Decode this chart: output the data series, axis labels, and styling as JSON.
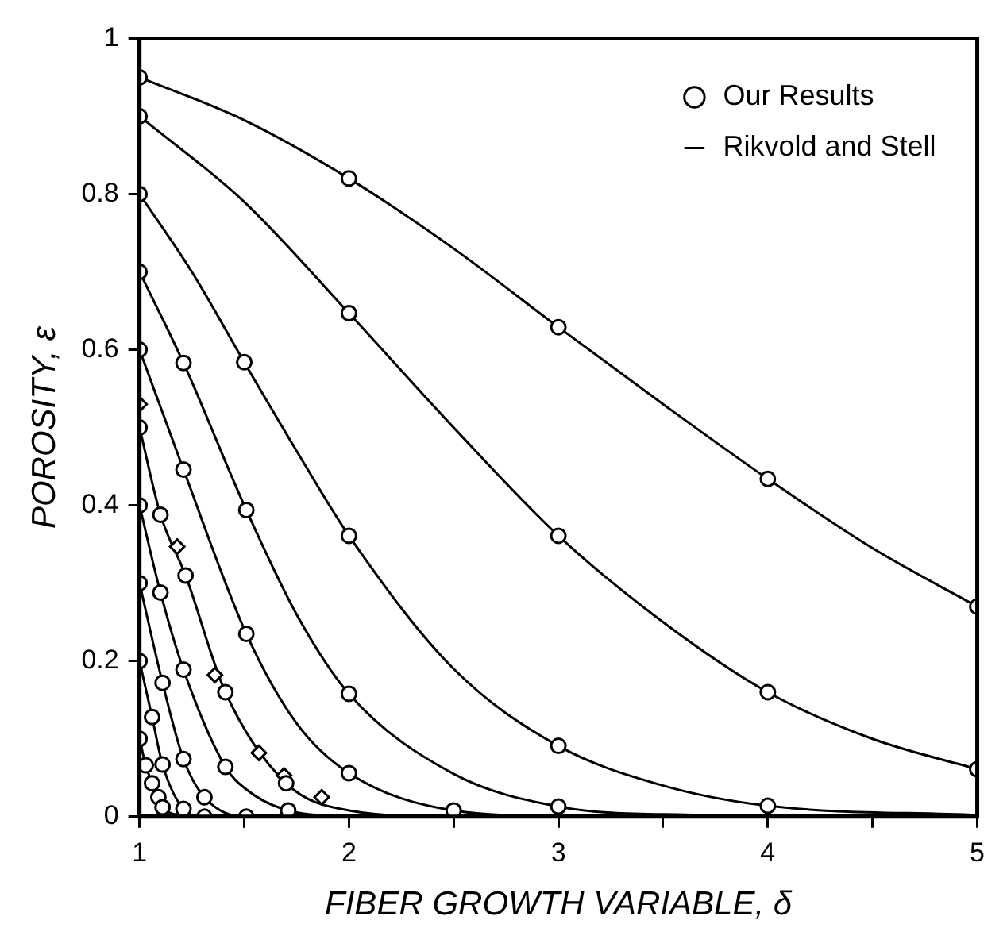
{
  "chart_data": {
    "type": "line",
    "xlabel": "FIBER GROWTH VARIABLE, δ",
    "ylabel": "POROSITY, ε",
    "xlim": [
      1,
      5
    ],
    "xticks": [
      1,
      {
        "value": 1.5,
        "label": null
      },
      2,
      {
        "value": 2.5,
        "label": null
      },
      3,
      {
        "value": 3.5,
        "label": null
      },
      4,
      {
        "value": 4.5,
        "label": null
      },
      5
    ],
    "ylim": [
      0,
      1
    ],
    "yticks": [
      0,
      0.2,
      0.4,
      0.6,
      0.8,
      1
    ],
    "grid": false,
    "legend": "top right",
    "series": [
      {
        "name": "Our Results",
        "type": "scatter",
        "marker": "circle",
        "color": "#000000",
        "x": [
          1,
          1,
          1,
          1,
          1,
          1,
          1,
          1,
          1,
          1,
          2,
          3,
          4,
          5,
          2,
          3,
          4,
          5,
          1.5,
          2,
          3,
          4,
          1.21,
          1.51,
          2,
          3,
          1.21,
          1.51,
          2,
          2.5,
          1.1,
          1.22,
          1.1,
          1.21,
          1.41,
          1.11,
          1.06,
          1.21,
          1.41,
          1.7,
          1.11,
          1.03,
          1.31,
          1.06,
          1.09,
          1.11,
          1.21,
          1.31,
          1.51,
          1.71
        ],
        "values": [
          0.95,
          0.9,
          0.8,
          0.7,
          0.6,
          0.5,
          0.4,
          0.3,
          0.2,
          0.1,
          0.82,
          0.629,
          0.434,
          0.27,
          0.647,
          0.361,
          0.16,
          0.061,
          0.584,
          0.361,
          0.091,
          0.014,
          0.583,
          0.394,
          0.158,
          0.013,
          0.446,
          0.235,
          0.056,
          0.008,
          0.388,
          0.31,
          0.288,
          0.189,
          0.16,
          0.172,
          0.128,
          0.074,
          0.064,
          0.043,
          0.067,
          0.066,
          0.025,
          0.043,
          0.025,
          0.012,
          0.01,
          0,
          0,
          0.008
        ]
      },
      {
        "type": "scatter",
        "marker": "diamond",
        "color": "#000000",
        "x": [
          1,
          1.18,
          1.36,
          1.57,
          1.69,
          1.87
        ],
        "values": [
          0.53,
          0.347,
          0.182,
          0.082,
          0.053,
          0.025
        ]
      },
      {
        "name": "Rikvold and Stell",
        "type": "line",
        "marker": "none",
        "color": "#000000",
        "x": [
          1,
          1.5,
          2,
          2.5,
          3,
          3.5,
          4,
          4.5,
          5
        ],
        "values": [
          0.95,
          0.895,
          0.82,
          0.73,
          0.629,
          0.53,
          0.434,
          0.345,
          0.27
        ]
      },
      {
        "type": "line",
        "marker": "none",
        "color": "#000000",
        "x": [
          1,
          1.5,
          2,
          2.5,
          3,
          3.5,
          4,
          4.5,
          5
        ],
        "values": [
          0.9,
          0.79,
          0.647,
          0.5,
          0.361,
          0.25,
          0.16,
          0.1,
          0.061
        ]
      },
      {
        "type": "line",
        "marker": "none",
        "color": "#000000",
        "x": [
          1,
          1.25,
          1.5,
          1.75,
          2,
          2.5,
          3,
          3.5,
          4,
          5
        ],
        "values": [
          0.8,
          0.7,
          0.584,
          0.47,
          0.361,
          0.19,
          0.091,
          0.04,
          0.014,
          0.002
        ]
      },
      {
        "type": "line",
        "marker": "none",
        "color": "#000000",
        "x": [
          1,
          1.21,
          1.51,
          1.75,
          2,
          2.5,
          3,
          3.5,
          5
        ],
        "values": [
          0.7,
          0.583,
          0.394,
          0.26,
          0.158,
          0.055,
          0.013,
          0.003,
          0
        ]
      },
      {
        "type": "line",
        "marker": "none",
        "color": "#000000",
        "x": [
          1,
          1.21,
          1.51,
          1.75,
          2,
          2.5,
          3,
          5
        ],
        "values": [
          0.6,
          0.446,
          0.235,
          0.12,
          0.056,
          0.008,
          0.001,
          0
        ]
      },
      {
        "type": "line",
        "marker": "none",
        "color": "#000000",
        "x": [
          1,
          1.1,
          1.22,
          1.41,
          1.7,
          2,
          2.5,
          5
        ],
        "values": [
          0.5,
          0.388,
          0.31,
          0.16,
          0.043,
          0.008,
          0,
          0
        ]
      },
      {
        "type": "line",
        "marker": "none",
        "color": "#000000",
        "x": [
          1,
          1.1,
          1.21,
          1.41,
          1.51,
          1.71,
          2,
          5
        ],
        "values": [
          0.4,
          0.288,
          0.189,
          0.064,
          0.035,
          0.008,
          0.001,
          0
        ]
      },
      {
        "type": "line",
        "marker": "none",
        "color": "#000000",
        "x": [
          1,
          1.11,
          1.21,
          1.31,
          1.51,
          5
        ],
        "values": [
          0.3,
          0.172,
          0.074,
          0.025,
          0,
          0
        ]
      },
      {
        "type": "line",
        "marker": "none",
        "color": "#000000",
        "x": [
          1,
          1.06,
          1.11,
          1.21,
          1.31,
          5
        ],
        "values": [
          0.2,
          0.128,
          0.067,
          0.01,
          0,
          0
        ]
      },
      {
        "type": "line",
        "marker": "none",
        "color": "#000000",
        "x": [
          1,
          1.03,
          1.06,
          1.09,
          1.11,
          1.21,
          1.5
        ],
        "values": [
          0.1,
          0.066,
          0.043,
          0.025,
          0.012,
          0.002,
          0
        ]
      }
    ]
  }
}
